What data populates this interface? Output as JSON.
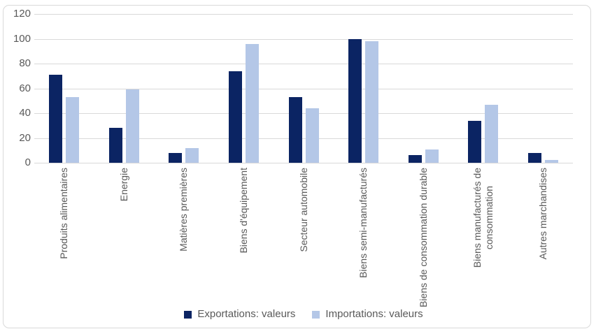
{
  "chart_data": {
    "type": "bar",
    "title": "",
    "xlabel": "",
    "ylabel": "",
    "ylim": [
      0,
      120
    ],
    "yticks": [
      0,
      20,
      40,
      60,
      80,
      100,
      120
    ],
    "grid": true,
    "legend_position": "bottom",
    "categories": [
      "Produits alimentaires",
      "Energie",
      "Matières premières",
      "Biens d'équipement",
      "Secteur automobile",
      "Biens semi-manufacturés",
      "Biens de consommation durable",
      "Biens manufacturés de\nconsommation",
      "Autres marchandises"
    ],
    "series": [
      {
        "name": "Exportations: valeurs",
        "color": "#0B2463",
        "values": [
          71,
          28,
          8,
          74,
          53,
          100,
          6,
          34,
          8
        ]
      },
      {
        "name": "Importations: valeurs",
        "color": "#B4C7E7",
        "values": [
          53,
          59,
          12,
          96,
          44,
          98,
          11,
          47,
          2.5
        ]
      }
    ]
  },
  "colors": {
    "gridline": "#D9D9D9",
    "frame_border": "#D9D9D9",
    "axis_text": "#595959",
    "background": "#FFFFFF"
  }
}
